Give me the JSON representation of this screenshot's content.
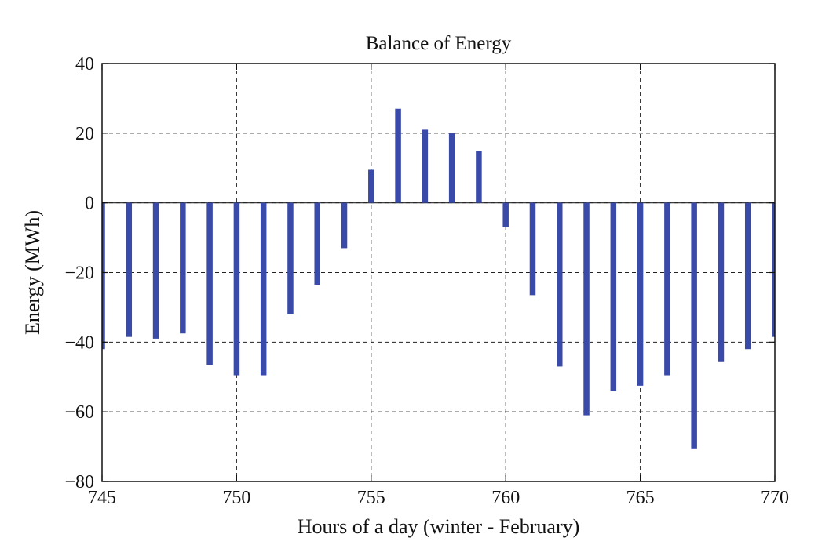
{
  "chart_data": {
    "type": "bar",
    "title": "Balance of Energy",
    "xlabel": "Hours of a day (winter - February)",
    "ylabel": "Energy (MWh)",
    "xlim": [
      745,
      770
    ],
    "ylim": [
      -80,
      40
    ],
    "xticks": [
      745,
      750,
      755,
      760,
      765,
      770
    ],
    "yticks": [
      -80,
      -60,
      -40,
      -20,
      0,
      20,
      40
    ],
    "xtick_labels": [
      "745",
      "750",
      "755",
      "760",
      "765",
      "770"
    ],
    "ytick_labels": [
      "−80",
      "−60",
      "−40",
      "−20",
      "0",
      "20",
      "40"
    ],
    "grid": true,
    "bar_color": "#3a4aa8",
    "x": [
      745,
      746,
      747,
      748,
      749,
      750,
      751,
      752,
      753,
      754,
      755,
      756,
      757,
      758,
      759,
      760,
      761,
      762,
      763,
      764,
      765,
      766,
      767,
      768,
      769,
      770
    ],
    "values": [
      -42,
      -38.5,
      -39,
      -37.5,
      -46.5,
      -49.5,
      -49.5,
      -32,
      -23.5,
      -13,
      9.5,
      27,
      21,
      20,
      15,
      -7,
      -26.5,
      -47,
      -61,
      -54,
      -52.5,
      -49.5,
      -70.5,
      -45.5,
      -42,
      -38.5
    ]
  }
}
